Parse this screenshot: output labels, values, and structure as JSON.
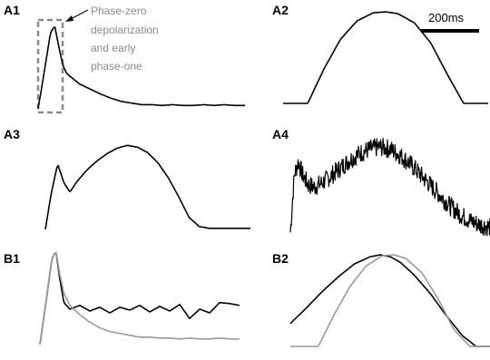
{
  "colors": {
    "trace": "#000000",
    "secondary_trace": "#9a9a9a",
    "annotation": "#8a8a8a",
    "dashed_box": "#8a8a8a"
  },
  "annotation": {
    "lines": [
      "Phase-zero",
      "depolarization",
      "and early",
      "phase-one"
    ],
    "arrow_icon": "arrow-icon"
  },
  "scale_bar": {
    "label": "200ms",
    "duration_ms": 200
  },
  "chart_data": [
    {
      "type": "line",
      "panel": "A1",
      "label": "A1",
      "series": [
        {
          "x": [
            0,
            0.03,
            0.06,
            0.08,
            0.1,
            0.12,
            0.14,
            0.17,
            0.2,
            0.25,
            0.3,
            0.35,
            0.4,
            0.45,
            0.5,
            0.55,
            0.6,
            0.65,
            0.7,
            0.75,
            0.8,
            0.85,
            0.9,
            0.95,
            1.0
          ],
          "y": [
            0,
            0.45,
            0.92,
            1.0,
            0.75,
            0.52,
            0.42,
            0.36,
            0.3,
            0.24,
            0.18,
            0.13,
            0.09,
            0.07,
            0.05,
            0.05,
            0.04,
            0.05,
            0.04,
            0.04,
            0.05,
            0.04,
            0.05,
            0.04,
            0.04
          ]
        }
      ],
      "ylim": [
        0,
        1.05
      ],
      "annotation_box": true
    },
    {
      "type": "line",
      "panel": "A2",
      "label": "A2",
      "series": [
        {
          "x": [
            0,
            0.12,
            0.2,
            0.28,
            0.36,
            0.44,
            0.5,
            0.56,
            0.64,
            0.72,
            0.8,
            0.88,
            1.0
          ],
          "y": [
            0,
            0,
            0.38,
            0.7,
            0.9,
            0.99,
            1.0,
            0.98,
            0.88,
            0.66,
            0.32,
            0,
            0
          ]
        }
      ],
      "ylim": [
        0,
        1.05
      ],
      "scale_bar": true
    },
    {
      "type": "line",
      "panel": "A3",
      "label": "A3",
      "series": [
        {
          "x": [
            0,
            0.03,
            0.06,
            0.09,
            0.12,
            0.15,
            0.2,
            0.25,
            0.3,
            0.35,
            0.4,
            0.45,
            0.5,
            0.55,
            0.6,
            0.65,
            0.7,
            0.75,
            0.8,
            0.85,
            0.9,
            0.95,
            1.0
          ],
          "y": [
            0.05,
            0.45,
            0.75,
            0.55,
            0.45,
            0.55,
            0.68,
            0.78,
            0.86,
            0.92,
            0.95,
            0.93,
            0.87,
            0.76,
            0.6,
            0.4,
            0.18,
            0.08,
            0.06,
            0.06,
            0.06,
            0.06,
            0.06
          ]
        }
      ],
      "ylim": [
        0,
        1.05
      ]
    },
    {
      "type": "line",
      "panel": "A4",
      "label": "A4",
      "series": [
        {
          "x": [
            0,
            0.02,
            0.04,
            0.06,
            0.09,
            0.12,
            0.16,
            0.2,
            0.25,
            0.3,
            0.35,
            0.4,
            0.45,
            0.5,
            0.55,
            0.6,
            0.65,
            0.7,
            0.75,
            0.8,
            0.85,
            0.9,
            0.95,
            1.0
          ],
          "y": [
            0.05,
            0.6,
            0.72,
            0.6,
            0.5,
            0.48,
            0.52,
            0.58,
            0.66,
            0.74,
            0.8,
            0.84,
            0.86,
            0.84,
            0.78,
            0.7,
            0.6,
            0.5,
            0.4,
            0.3,
            0.22,
            0.16,
            0.12,
            0.1
          ]
        }
      ],
      "ylim": [
        0,
        1.05
      ],
      "noise": 0.18
    },
    {
      "type": "line",
      "panel": "B1",
      "label": "B1",
      "series": [
        {
          "x": [
            0,
            0.03,
            0.06,
            0.08,
            0.1,
            0.12,
            0.15,
            0.2,
            0.25,
            0.3,
            0.35,
            0.4,
            0.45,
            0.5,
            0.55,
            0.6,
            0.65,
            0.7,
            0.75,
            0.8,
            0.85,
            0.9,
            0.95,
            1.0
          ],
          "y": [
            0,
            0.45,
            0.92,
            1.0,
            0.7,
            0.45,
            0.38,
            0.42,
            0.36,
            0.4,
            0.34,
            0.4,
            0.37,
            0.42,
            0.35,
            0.41,
            0.36,
            0.43,
            0.28,
            0.38,
            0.34,
            0.45,
            0.44,
            0.42
          ],
          "color": "#000000"
        },
        {
          "x": [
            0,
            0.03,
            0.06,
            0.08,
            0.1,
            0.12,
            0.15,
            0.2,
            0.25,
            0.3,
            0.35,
            0.4,
            0.45,
            0.5,
            0.55,
            0.6,
            0.65,
            0.7,
            0.75,
            0.8,
            0.85,
            0.9,
            0.95,
            1.0
          ],
          "y": [
            0,
            0.45,
            0.92,
            1.0,
            0.75,
            0.55,
            0.42,
            0.32,
            0.24,
            0.18,
            0.14,
            0.12,
            0.1,
            0.08,
            0.08,
            0.07,
            0.07,
            0.06,
            0.07,
            0.06,
            0.06,
            0.07,
            0.06,
            0.06
          ],
          "color": "#9a9a9a"
        }
      ],
      "ylim": [
        0,
        1.05
      ]
    },
    {
      "type": "line",
      "panel": "B2",
      "label": "B2",
      "series": [
        {
          "x": [
            0,
            0.08,
            0.16,
            0.24,
            0.32,
            0.4,
            0.45,
            0.5,
            0.55,
            0.62,
            0.7,
            0.78,
            0.86,
            0.93,
            1.0
          ],
          "y": [
            0.25,
            0.42,
            0.6,
            0.76,
            0.9,
            0.98,
            1.0,
            0.98,
            0.92,
            0.78,
            0.58,
            0.34,
            0.12,
            0.0,
            0.0
          ],
          "color": "#000000"
        },
        {
          "x": [
            0,
            0.14,
            0.22,
            0.3,
            0.38,
            0.46,
            0.52,
            0.58,
            0.66,
            0.74,
            0.82,
            0.9,
            1.0
          ],
          "y": [
            0,
            0,
            0.35,
            0.66,
            0.88,
            0.99,
            1.0,
            0.96,
            0.8,
            0.52,
            0.18,
            0,
            0
          ],
          "color": "#9a9a9a"
        }
      ],
      "ylim": [
        0,
        1.05
      ]
    }
  ]
}
